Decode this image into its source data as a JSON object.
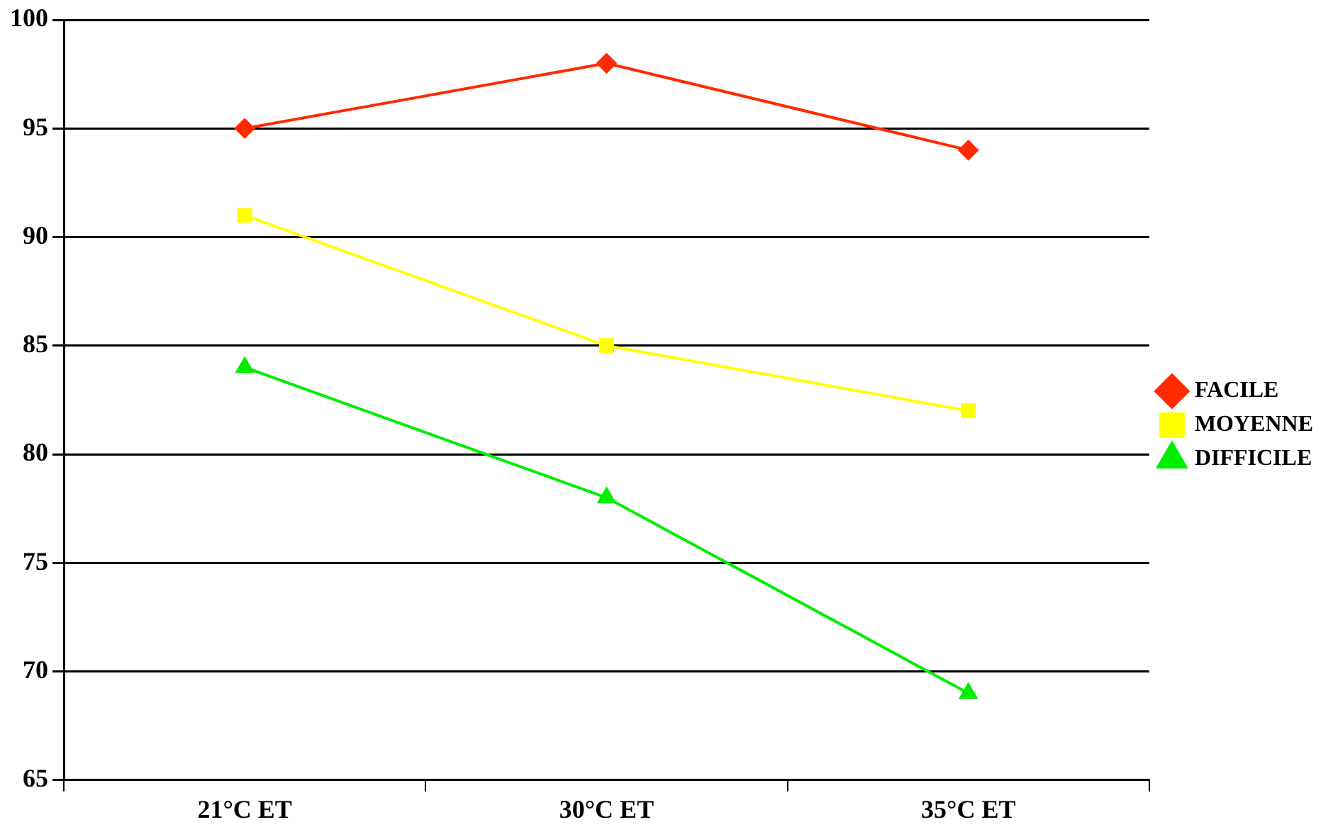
{
  "chart_data": {
    "type": "line",
    "categories": [
      "21°C ET",
      "30°C ET",
      "35°C ET"
    ],
    "series": [
      {
        "name": "FACILE",
        "color": "#ff2a00",
        "marker": "diamond",
        "values": [
          95,
          98,
          94
        ]
      },
      {
        "name": "MOYENNE",
        "color": "#ffff00",
        "marker": "square",
        "values": [
          91,
          85,
          82
        ]
      },
      {
        "name": "DIFFICILE",
        "color": "#00ee00",
        "marker": "triangle",
        "values": [
          84,
          78,
          69
        ]
      }
    ],
    "ylim": [
      65,
      100
    ],
    "yticks": [
      65,
      70,
      75,
      80,
      85,
      90,
      95,
      100
    ],
    "grid": "y",
    "legend": "right",
    "line_style": "solid"
  }
}
